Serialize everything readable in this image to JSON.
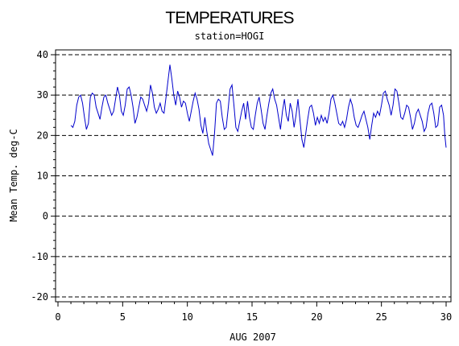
{
  "chart_data": {
    "type": "line",
    "title": "TEMPERATURES",
    "subtitle": "station=HOGI",
    "xlabel": "AUG 2007",
    "ylabel": "Mean Temp. deg-C",
    "xlim": [
      0,
      30
    ],
    "ylim": [
      -20,
      40
    ],
    "x_ticks": [
      0,
      5,
      10,
      15,
      20,
      25,
      30
    ],
    "y_ticks": [
      -20,
      -10,
      0,
      10,
      20,
      30,
      40
    ],
    "grid": "dashed horizontal at y ticks",
    "line_color": "#0000cc",
    "series": [
      {
        "values": [
          [
            1.0,
            22.5
          ],
          [
            1.15,
            22.0
          ],
          [
            1.3,
            23.5
          ],
          [
            1.45,
            27.5
          ],
          [
            1.6,
            29.5
          ],
          [
            1.75,
            30.0
          ],
          [
            1.9,
            28.0
          ],
          [
            2.05,
            24.5
          ],
          [
            2.2,
            21.5
          ],
          [
            2.35,
            23.0
          ],
          [
            2.5,
            29.5
          ],
          [
            2.65,
            30.5
          ],
          [
            2.8,
            30.0
          ],
          [
            2.95,
            27.0
          ],
          [
            3.1,
            25.5
          ],
          [
            3.25,
            24.0
          ],
          [
            3.4,
            27.0
          ],
          [
            3.55,
            29.5
          ],
          [
            3.7,
            30.0
          ],
          [
            3.85,
            28.0
          ],
          [
            4.0,
            26.5
          ],
          [
            4.15,
            25.0
          ],
          [
            4.3,
            26.0
          ],
          [
            4.45,
            29.0
          ],
          [
            4.6,
            32.0
          ],
          [
            4.75,
            30.0
          ],
          [
            4.9,
            26.0
          ],
          [
            5.05,
            25.0
          ],
          [
            5.2,
            27.5
          ],
          [
            5.35,
            31.5
          ],
          [
            5.5,
            32.0
          ],
          [
            5.65,
            30.0
          ],
          [
            5.8,
            27.0
          ],
          [
            5.95,
            23.0
          ],
          [
            6.1,
            24.5
          ],
          [
            6.25,
            27.0
          ],
          [
            6.4,
            29.5
          ],
          [
            6.55,
            29.0
          ],
          [
            6.7,
            27.5
          ],
          [
            6.85,
            26.0
          ],
          [
            7.0,
            28.0
          ],
          [
            7.15,
            32.5
          ],
          [
            7.3,
            30.5
          ],
          [
            7.45,
            27.0
          ],
          [
            7.6,
            25.5
          ],
          [
            7.75,
            26.5
          ],
          [
            7.9,
            28.0
          ],
          [
            8.05,
            26.0
          ],
          [
            8.2,
            25.5
          ],
          [
            8.35,
            29.5
          ],
          [
            8.5,
            33.5
          ],
          [
            8.65,
            37.5
          ],
          [
            8.8,
            34.0
          ],
          [
            8.95,
            30.0
          ],
          [
            9.1,
            27.5
          ],
          [
            9.25,
            31.0
          ],
          [
            9.4,
            29.5
          ],
          [
            9.55,
            27.0
          ],
          [
            9.7,
            28.5
          ],
          [
            9.85,
            28.0
          ],
          [
            10.0,
            25.5
          ],
          [
            10.15,
            23.5
          ],
          [
            10.3,
            26.0
          ],
          [
            10.45,
            28.5
          ],
          [
            10.6,
            30.5
          ],
          [
            10.75,
            29.0
          ],
          [
            10.9,
            26.5
          ],
          [
            11.05,
            22.5
          ],
          [
            11.2,
            20.5
          ],
          [
            11.35,
            24.5
          ],
          [
            11.5,
            21.0
          ],
          [
            11.65,
            18.0
          ],
          [
            11.8,
            16.5
          ],
          [
            11.95,
            15.0
          ],
          [
            12.1,
            20.5
          ],
          [
            12.25,
            28.0
          ],
          [
            12.4,
            29.0
          ],
          [
            12.55,
            28.5
          ],
          [
            12.7,
            24.5
          ],
          [
            12.85,
            21.5
          ],
          [
            13.0,
            22.0
          ],
          [
            13.15,
            26.5
          ],
          [
            13.3,
            31.5
          ],
          [
            13.45,
            32.5
          ],
          [
            13.6,
            27.5
          ],
          [
            13.75,
            22.0
          ],
          [
            13.9,
            21.0
          ],
          [
            14.05,
            23.5
          ],
          [
            14.2,
            26.0
          ],
          [
            14.35,
            28.0
          ],
          [
            14.5,
            24.0
          ],
          [
            14.65,
            28.5
          ],
          [
            14.8,
            24.5
          ],
          [
            14.95,
            22.0
          ],
          [
            15.1,
            21.5
          ],
          [
            15.25,
            25.0
          ],
          [
            15.4,
            28.0
          ],
          [
            15.55,
            29.5
          ],
          [
            15.7,
            26.5
          ],
          [
            15.85,
            23.0
          ],
          [
            16.0,
            21.5
          ],
          [
            16.15,
            25.0
          ],
          [
            16.3,
            28.0
          ],
          [
            16.45,
            30.5
          ],
          [
            16.6,
            31.5
          ],
          [
            16.75,
            29.0
          ],
          [
            16.9,
            27.5
          ],
          [
            17.05,
            24.5
          ],
          [
            17.2,
            21.5
          ],
          [
            17.35,
            26.0
          ],
          [
            17.5,
            29.0
          ],
          [
            17.65,
            25.0
          ],
          [
            17.8,
            23.5
          ],
          [
            17.95,
            28.0
          ],
          [
            18.1,
            26.0
          ],
          [
            18.25,
            22.0
          ],
          [
            18.4,
            25.0
          ],
          [
            18.55,
            29.0
          ],
          [
            18.7,
            24.0
          ],
          [
            18.85,
            19.0
          ],
          [
            19.0,
            17.0
          ],
          [
            19.15,
            20.5
          ],
          [
            19.3,
            24.0
          ],
          [
            19.45,
            27.0
          ],
          [
            19.6,
            27.5
          ],
          [
            19.75,
            25.5
          ],
          [
            19.9,
            22.5
          ],
          [
            20.05,
            24.5
          ],
          [
            20.2,
            23.0
          ],
          [
            20.35,
            25.0
          ],
          [
            20.5,
            23.5
          ],
          [
            20.65,
            24.5
          ],
          [
            20.8,
            23.0
          ],
          [
            20.95,
            25.5
          ],
          [
            21.1,
            29.0
          ],
          [
            21.25,
            30.0
          ],
          [
            21.4,
            28.0
          ],
          [
            21.55,
            25.5
          ],
          [
            21.7,
            23.0
          ],
          [
            21.85,
            22.5
          ],
          [
            22.0,
            23.5
          ],
          [
            22.15,
            22.0
          ],
          [
            22.3,
            24.0
          ],
          [
            22.45,
            27.0
          ],
          [
            22.6,
            29.0
          ],
          [
            22.75,
            27.5
          ],
          [
            22.9,
            24.5
          ],
          [
            23.05,
            22.5
          ],
          [
            23.2,
            22.0
          ],
          [
            23.35,
            23.5
          ],
          [
            23.5,
            25.0
          ],
          [
            23.65,
            26.0
          ],
          [
            23.8,
            24.0
          ],
          [
            23.95,
            22.0
          ],
          [
            24.1,
            19.0
          ],
          [
            24.25,
            22.5
          ],
          [
            24.4,
            25.5
          ],
          [
            24.55,
            24.5
          ],
          [
            24.7,
            26.0
          ],
          [
            24.85,
            25.0
          ],
          [
            25.0,
            27.5
          ],
          [
            25.15,
            30.5
          ],
          [
            25.3,
            31.0
          ],
          [
            25.45,
            29.0
          ],
          [
            25.6,
            27.5
          ],
          [
            25.75,
            25.0
          ],
          [
            25.9,
            27.5
          ],
          [
            26.05,
            31.5
          ],
          [
            26.2,
            31.0
          ],
          [
            26.35,
            28.0
          ],
          [
            26.5,
            24.5
          ],
          [
            26.65,
            24.0
          ],
          [
            26.8,
            25.5
          ],
          [
            26.95,
            27.5
          ],
          [
            27.1,
            27.0
          ],
          [
            27.25,
            24.5
          ],
          [
            27.4,
            21.5
          ],
          [
            27.55,
            23.0
          ],
          [
            27.7,
            25.5
          ],
          [
            27.85,
            26.5
          ],
          [
            28.0,
            25.0
          ],
          [
            28.15,
            23.5
          ],
          [
            28.3,
            21.0
          ],
          [
            28.45,
            22.0
          ],
          [
            28.6,
            25.5
          ],
          [
            28.75,
            27.5
          ],
          [
            28.9,
            28.0
          ],
          [
            29.05,
            25.5
          ],
          [
            29.2,
            22.0
          ],
          [
            29.35,
            22.5
          ],
          [
            29.5,
            27.0
          ],
          [
            29.65,
            27.5
          ],
          [
            29.8,
            25.0
          ],
          [
            29.9,
            20.0
          ],
          [
            30.0,
            17.0
          ]
        ]
      }
    ]
  }
}
